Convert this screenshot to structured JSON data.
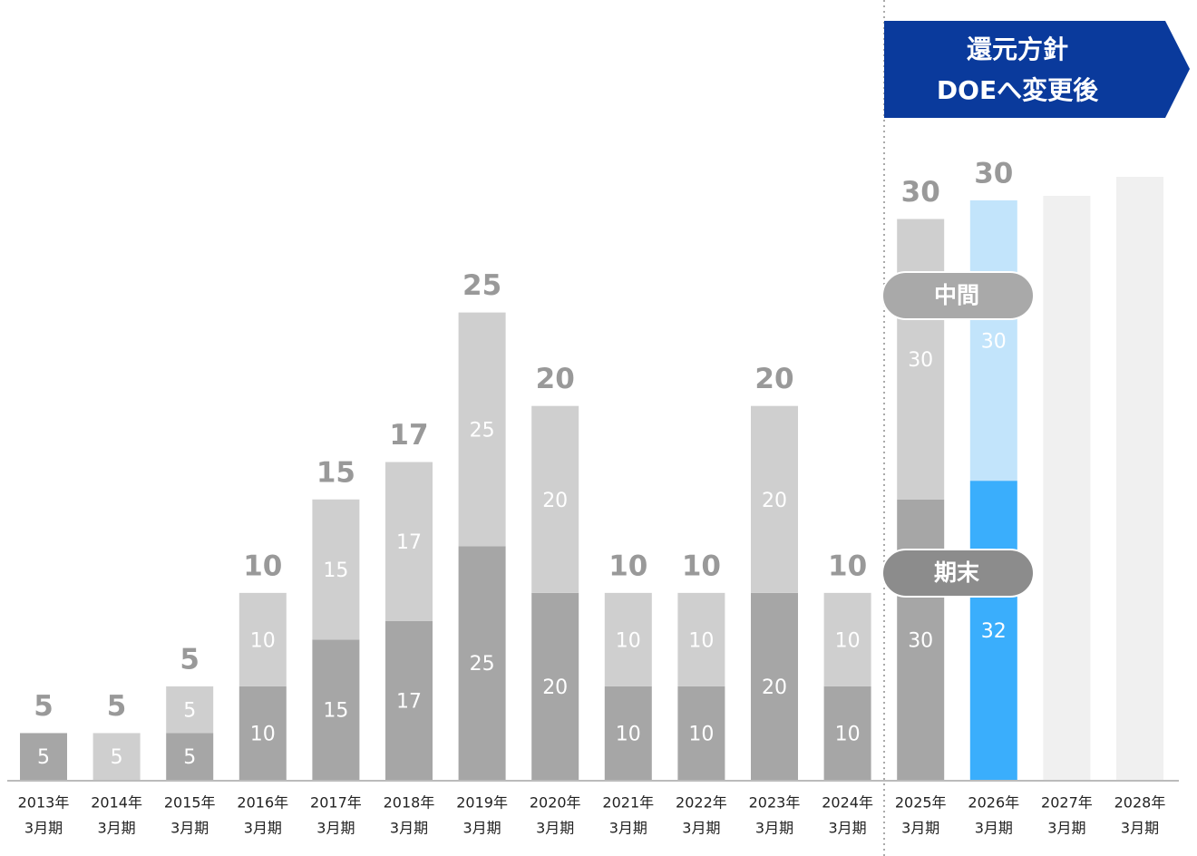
{
  "chart_data": {
    "type": "stacked-bar",
    "annotation": [
      "還元方針",
      "DOEへ変更後"
    ],
    "categories": [
      [
        "2013年",
        "3月期"
      ],
      [
        "2014年",
        "3月期"
      ],
      [
        "2015年",
        "3月期"
      ],
      [
        "2016年",
        "3月期"
      ],
      [
        "2017年",
        "3月期"
      ],
      [
        "2018年",
        "3月期"
      ],
      [
        "2019年",
        "3月期"
      ],
      [
        "2020年",
        "3月期"
      ],
      [
        "2021年",
        "3月期"
      ],
      [
        "2022年",
        "3月期"
      ],
      [
        "2023年",
        "3月期"
      ],
      [
        "2024年",
        "3月期"
      ],
      [
        "2025年",
        "3月期"
      ],
      [
        "2026年",
        "3月期"
      ],
      [
        "2027年",
        "3月期"
      ],
      [
        "2028年",
        "3月期"
      ]
    ],
    "series": [
      {
        "name": "期末",
        "colors": [
          "#a6a6a6",
          "#a6a6a6",
          "#a6a6a6",
          "#a6a6a6",
          "#a6a6a6",
          "#a6a6a6",
          "#a6a6a6",
          "#a6a6a6",
          "#a6a6a6",
          "#a6a6a6",
          "#a6a6a6",
          "#a6a6a6",
          "#a6a6a6",
          "#3aaefc",
          null,
          null
        ],
        "values": [
          5,
          null,
          5,
          10,
          15,
          17,
          25,
          20,
          10,
          10,
          20,
          10,
          30,
          32,
          null,
          null
        ]
      },
      {
        "name": "中間",
        "colors": [
          "#cfcfcf",
          "#cfcfcf",
          "#cfcfcf",
          "#cfcfcf",
          "#cfcfcf",
          "#cfcfcf",
          "#cfcfcf",
          "#cfcfcf",
          "#cfcfcf",
          "#cfcfcf",
          "#cfcfcf",
          "#cfcfcf",
          "#cfcfcf",
          "#c2e4fb",
          null,
          null
        ],
        "values": [
          null,
          5,
          5,
          10,
          15,
          17,
          25,
          20,
          10,
          10,
          20,
          10,
          30,
          30,
          null,
          null
        ]
      }
    ],
    "top_labels": [
      5,
      5,
      5,
      10,
      15,
      17,
      25,
      20,
      10,
      10,
      20,
      10,
      30,
      30,
      null,
      null
    ],
    "ylim": [
      0,
      65
    ]
  }
}
